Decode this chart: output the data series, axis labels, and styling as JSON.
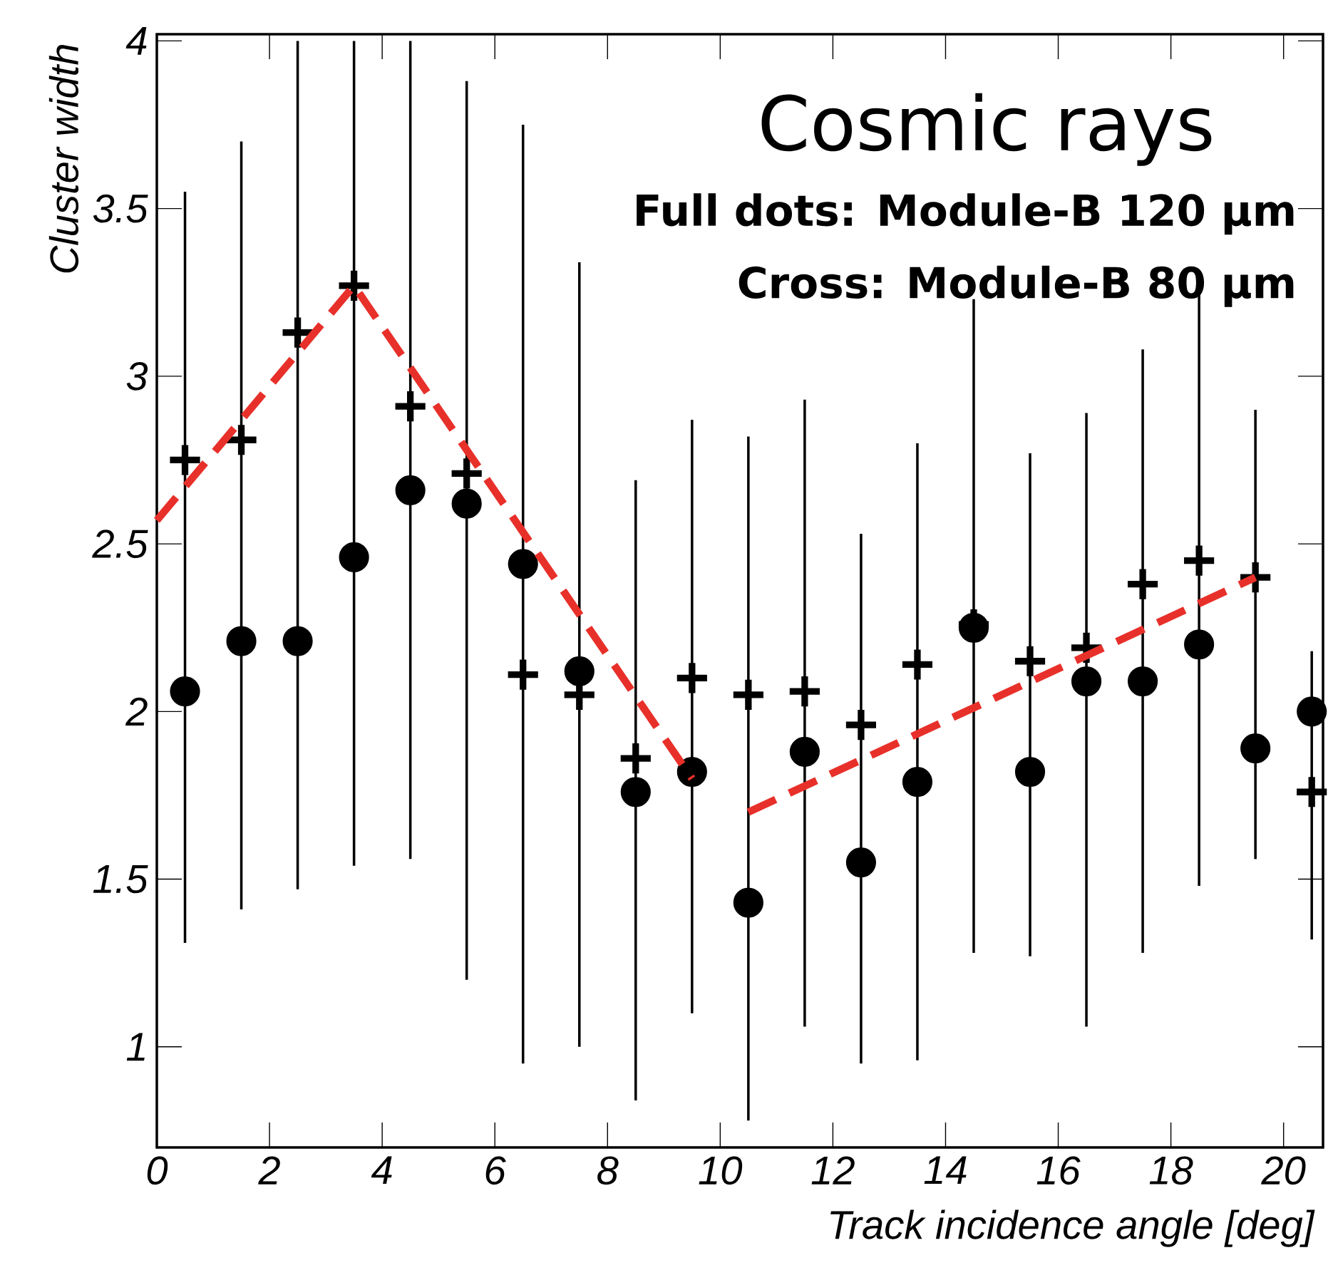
{
  "chart_data": {
    "type": "scatter",
    "xlabel": "Track incidence angle [deg]",
    "ylabel": "Cluster width",
    "annotations": [
      "Cosmic rays",
      "Full dots:  Module-B 120 µm",
      "Cross: Module-B 80 µm"
    ],
    "x": [
      0.5,
      1.5,
      2.5,
      3.5,
      4.5,
      5.5,
      6.5,
      7.5,
      8.5,
      9.5,
      10.5,
      11.5,
      12.5,
      13.5,
      14.5,
      15.5,
      16.5,
      17.5,
      18.5,
      19.5,
      20.5
    ],
    "series": [
      {
        "color": "#000000",
        "marker": "circle",
        "values": [
          2.06,
          2.21,
          2.21,
          2.46,
          2.66,
          2.62,
          2.44,
          2.12,
          1.76,
          1.82,
          1.43,
          1.88,
          1.55,
          1.79,
          2.25,
          1.82,
          2.09,
          2.09,
          2.2,
          1.89,
          2.0
        ],
        "errors": [
          [
            1.31,
            3.55
          ],
          [
            1.41,
            3.7
          ],
          [
            1.47,
            4.0
          ],
          [
            1.54,
            4.0
          ],
          [
            1.56,
            4.0
          ],
          [
            1.2,
            3.88
          ],
          [
            0.95,
            3.75
          ],
          [
            1.0,
            3.34
          ],
          [
            0.84,
            2.69
          ],
          [
            1.1,
            2.87
          ],
          [
            0.78,
            2.82
          ],
          [
            1.06,
            2.93
          ],
          [
            0.95,
            2.53
          ],
          [
            0.96,
            2.8
          ],
          [
            1.28,
            3.23
          ],
          [
            1.27,
            2.77
          ],
          [
            1.06,
            2.89
          ],
          [
            1.28,
            3.08
          ],
          [
            1.48,
            3.26
          ],
          [
            1.56,
            2.9
          ],
          [
            1.32,
            2.18
          ]
        ]
      },
      {
        "color": "#000000",
        "marker": "cross",
        "values": [
          2.75,
          2.81,
          3.13,
          3.27,
          2.91,
          2.71,
          2.11,
          2.05,
          1.86,
          2.1,
          2.05,
          2.06,
          1.96,
          2.14,
          2.26,
          2.15,
          2.19,
          2.38,
          2.45,
          2.4,
          1.76
        ]
      },
      {
        "type": "line",
        "color": "#e8302a",
        "line_style": "dashed",
        "marker": "none",
        "x": [
          0,
          3.5,
          9.5
        ],
        "values": [
          2.57,
          3.27,
          1.8
        ]
      },
      {
        "type": "line",
        "color": "#e8302a",
        "line_style": "dashed",
        "marker": "none",
        "x": [
          10.5,
          19.5
        ],
        "values": [
          1.7,
          2.4
        ]
      }
    ],
    "xlim": [
      0,
      20.7
    ],
    "ylim": [
      0.7,
      4.02
    ],
    "xticks": [
      0,
      2,
      4,
      6,
      8,
      10,
      12,
      14,
      16,
      18,
      20
    ],
    "yticks": [
      1,
      1.5,
      2,
      2.5,
      3,
      3.5,
      4
    ],
    "grid": false
  }
}
